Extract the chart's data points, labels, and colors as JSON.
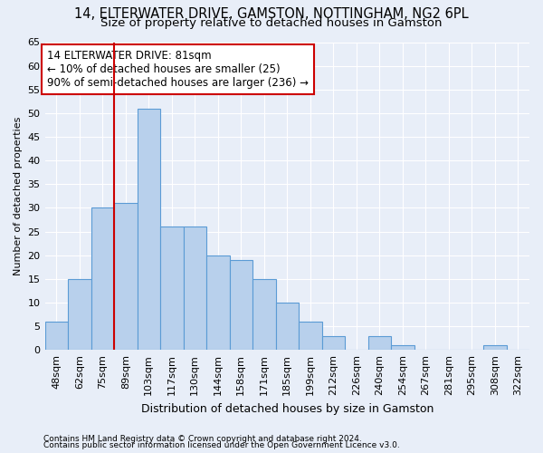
{
  "title1": "14, ELTERWATER DRIVE, GAMSTON, NOTTINGHAM, NG2 6PL",
  "title2": "Size of property relative to detached houses in Gamston",
  "xlabel": "Distribution of detached houses by size in Gamston",
  "ylabel": "Number of detached properties",
  "categories": [
    "48sqm",
    "62sqm",
    "75sqm",
    "89sqm",
    "103sqm",
    "117sqm",
    "130sqm",
    "144sqm",
    "158sqm",
    "171sqm",
    "185sqm",
    "199sqm",
    "212sqm",
    "226sqm",
    "240sqm",
    "254sqm",
    "267sqm",
    "281sqm",
    "295sqm",
    "308sqm",
    "322sqm"
  ],
  "values": [
    6,
    15,
    30,
    31,
    51,
    26,
    26,
    20,
    19,
    15,
    10,
    6,
    3,
    0,
    3,
    1,
    0,
    0,
    0,
    1,
    0
  ],
  "bar_color": "#b8d0ec",
  "bar_edge_color": "#5b9bd5",
  "annotation_text": "14 ELTERWATER DRIVE: 81sqm\n← 10% of detached houses are smaller (25)\n90% of semi-detached houses are larger (236) →",
  "annotation_box_color": "white",
  "annotation_box_edge_color": "#cc0000",
  "red_line_x": 2.5,
  "ylim": [
    0,
    65
  ],
  "yticks": [
    0,
    5,
    10,
    15,
    20,
    25,
    30,
    35,
    40,
    45,
    50,
    55,
    60,
    65
  ],
  "footer1": "Contains HM Land Registry data © Crown copyright and database right 2024.",
  "footer2": "Contains public sector information licensed under the Open Government Licence v3.0.",
  "bg_color": "#e8eef8",
  "grid_color": "#ffffff",
  "title1_fontsize": 10.5,
  "title2_fontsize": 9.5,
  "annotation_fontsize": 8.5,
  "axis_fontsize": 8,
  "xlabel_fontsize": 9,
  "ylabel_fontsize": 8,
  "footer_fontsize": 6.5
}
